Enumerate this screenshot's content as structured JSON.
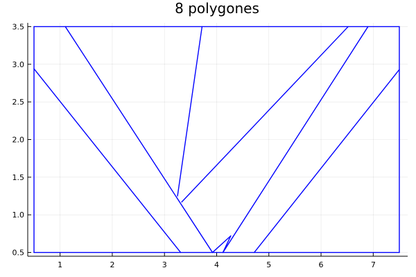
{
  "chart_data": {
    "type": "line",
    "title": "8 polygones",
    "xlabel": "",
    "ylabel": "",
    "xlim": [
      0.38,
      7.66
    ],
    "ylim": [
      0.45,
      3.55
    ],
    "xticks": [
      1,
      2,
      3,
      4,
      5,
      6,
      7
    ],
    "yticks": [
      0.5,
      1.0,
      1.5,
      2.0,
      2.5,
      3.0,
      3.5
    ],
    "ytick_labels": [
      "0.5",
      "1.0",
      "1.5",
      "2.0",
      "2.5",
      "3.0",
      "3.5"
    ],
    "grid": true,
    "legend": "none",
    "color": "#0000ff",
    "segments": [
      [
        [
          0.5,
          0.5
        ],
        [
          7.5,
          0.5
        ]
      ],
      [
        [
          0.5,
          3.5
        ],
        [
          7.5,
          3.5
        ]
      ],
      [
        [
          0.5,
          0.5
        ],
        [
          0.5,
          3.5
        ]
      ],
      [
        [
          7.5,
          0.5
        ],
        [
          7.5,
          3.5
        ]
      ],
      [
        [
          0.5,
          2.94
        ],
        [
          3.31,
          0.5
        ]
      ],
      [
        [
          1.1,
          3.5
        ],
        [
          3.92,
          0.5
        ]
      ],
      [
        [
          3.92,
          0.5
        ],
        [
          4.27,
          0.72
        ]
      ],
      [
        [
          4.27,
          0.72
        ],
        [
          4.12,
          0.5
        ]
      ],
      [
        [
          3.25,
          1.25
        ],
        [
          3.72,
          3.5
        ]
      ],
      [
        [
          3.33,
          1.17
        ],
        [
          6.52,
          3.5
        ]
      ],
      [
        [
          4.12,
          0.5
        ],
        [
          6.9,
          3.5
        ]
      ],
      [
        [
          4.72,
          0.5
        ],
        [
          7.5,
          2.93
        ]
      ]
    ]
  }
}
